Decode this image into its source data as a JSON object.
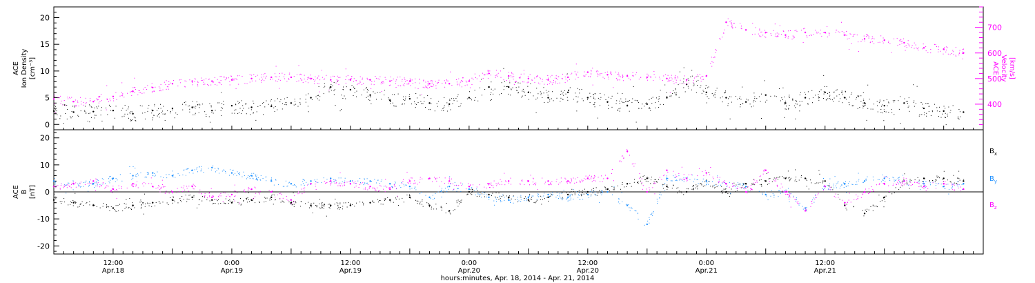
{
  "chart_data": [
    {
      "type": "scatter",
      "panel": "top",
      "title": "",
      "ylabel_left": [
        "ACE",
        "Ion Density",
        "[cm⁻³]"
      ],
      "ylabel_right": [
        "ACE",
        "Velocity",
        "[km/s]"
      ],
      "xlim": [
        0,
        94
      ],
      "ylim_left": [
        -1,
        22
      ],
      "ylim_right": [
        300,
        780
      ],
      "yticks_left": [
        0,
        5,
        10,
        15,
        20
      ],
      "yticks_right": [
        400,
        500,
        600,
        700
      ],
      "series": [
        {
          "name": "Ion Density",
          "axis": "left",
          "color": "#000000",
          "x": [
            0,
            2,
            4,
            6,
            8,
            10,
            12,
            14,
            16,
            18,
            20,
            22,
            24,
            26,
            28,
            30,
            32,
            34,
            36,
            38,
            40,
            42,
            44,
            46,
            48,
            50,
            52,
            54,
            56,
            58,
            60,
            62,
            64,
            66,
            68,
            70,
            72,
            74,
            76,
            78,
            80,
            82,
            84,
            86,
            88,
            90,
            92
          ],
          "y": [
            2.5,
            2.3,
            2.4,
            2.6,
            2.0,
            2.6,
            3.0,
            3.2,
            2.6,
            3.5,
            3.2,
            3.4,
            4.0,
            5.0,
            7.0,
            6.5,
            5.5,
            4.5,
            4.8,
            4.0,
            3.8,
            5.0,
            7.0,
            7.0,
            6.0,
            5.0,
            6.0,
            5.0,
            4.2,
            3.5,
            3.8,
            5.0,
            7.5,
            6.0,
            5.0,
            4.2,
            5.5,
            4.0,
            5.0,
            6.0,
            5.0,
            4.0,
            3.5,
            4.0,
            3.0,
            2.5,
            2.3
          ]
        },
        {
          "name": "Velocity",
          "axis": "right",
          "color": "#ff00ff",
          "x": [
            0,
            2,
            4,
            6,
            8,
            10,
            12,
            14,
            16,
            18,
            20,
            22,
            24,
            26,
            28,
            30,
            32,
            34,
            36,
            38,
            40,
            42,
            44,
            46,
            48,
            50,
            52,
            54,
            56,
            58,
            60,
            62,
            64,
            66,
            68,
            70,
            72,
            74,
            76,
            78,
            80,
            82,
            84,
            86,
            88,
            90,
            92
          ],
          "y": [
            420,
            410,
            410,
            430,
            450,
            465,
            480,
            490,
            490,
            495,
            500,
            505,
            505,
            500,
            495,
            495,
            495,
            490,
            490,
            480,
            480,
            490,
            520,
            510,
            500,
            495,
            505,
            525,
            515,
            510,
            505,
            500,
            495,
            510,
            720,
            690,
            680,
            670,
            680,
            680,
            670,
            655,
            650,
            640,
            620,
            615,
            600
          ]
        }
      ]
    },
    {
      "type": "scatter",
      "panel": "bottom",
      "title": "",
      "ylabel_left": [
        "ACE",
        "B",
        "[nT]"
      ],
      "xlabel": "hours:minutes, Apr. 18, 2014 - Apr. 21, 2014",
      "xlim": [
        0,
        94
      ],
      "ylim": [
        -23,
        23
      ],
      "yticks": [
        -20,
        -10,
        0,
        10,
        20
      ],
      "legend_position": "right",
      "x_tick_labels": [
        {
          "x": 6,
          "time": "12:00",
          "day": "Apr.18"
        },
        {
          "x": 18,
          "time": "0:00",
          "day": "Apr.19"
        },
        {
          "x": 30,
          "time": "12:00",
          "day": "Apr.19"
        },
        {
          "x": 42,
          "time": "0:00",
          "day": "Apr.20"
        },
        {
          "x": 54,
          "time": "12:00",
          "day": "Apr.20"
        },
        {
          "x": 66,
          "time": "0:00",
          "day": "Apr.21"
        },
        {
          "x": 78,
          "time": "12:00",
          "day": "Apr.21"
        }
      ],
      "series": [
        {
          "name": "B",
          "sub": "x",
          "color": "#000000",
          "x": [
            0,
            2,
            4,
            6,
            8,
            10,
            12,
            14,
            16,
            18,
            20,
            22,
            24,
            26,
            28,
            30,
            32,
            34,
            36,
            38,
            40,
            42,
            44,
            46,
            48,
            50,
            52,
            54,
            56,
            58,
            60,
            62,
            64,
            66,
            68,
            70,
            72,
            74,
            76,
            78,
            80,
            82,
            84,
            86,
            88,
            90,
            92
          ],
          "y": [
            -3,
            -4,
            -5,
            -6,
            -5,
            -4,
            -3,
            -2,
            -3,
            -4,
            -3,
            -2,
            -4,
            -5,
            -5,
            -5,
            -4,
            -3,
            -2,
            -5,
            -7,
            0,
            -1,
            -2,
            -3,
            -2,
            -1,
            0,
            1,
            3,
            5,
            2,
            0,
            4,
            0,
            3,
            4,
            5,
            5,
            4,
            -5,
            -8,
            -2,
            4,
            5,
            5,
            4
          ]
        },
        {
          "name": "B",
          "sub": "y",
          "color": "#1e90ff",
          "x": [
            0,
            2,
            4,
            6,
            8,
            10,
            12,
            14,
            16,
            18,
            20,
            22,
            24,
            26,
            28,
            30,
            32,
            34,
            36,
            38,
            40,
            42,
            44,
            46,
            48,
            50,
            52,
            54,
            56,
            58,
            60,
            62,
            64,
            66,
            68,
            70,
            72,
            74,
            76,
            78,
            80,
            82,
            84,
            86,
            88,
            90,
            92
          ],
          "y": [
            4,
            3,
            3,
            5,
            6,
            7,
            6,
            8,
            9,
            7,
            6,
            4,
            3,
            4,
            5,
            4,
            4,
            3,
            2,
            -2,
            2,
            1,
            -2,
            -3,
            -2,
            -1,
            -2,
            -1,
            0,
            -5,
            -12,
            5,
            5,
            4,
            3,
            2,
            -1,
            0,
            -6,
            2,
            3,
            4,
            5,
            4,
            3,
            2,
            3
          ]
        },
        {
          "name": "B",
          "sub": "z",
          "color": "#ff00ff",
          "x": [
            0,
            2,
            4,
            6,
            8,
            10,
            12,
            14,
            16,
            18,
            20,
            22,
            24,
            26,
            28,
            30,
            32,
            34,
            36,
            38,
            40,
            42,
            44,
            46,
            48,
            50,
            52,
            54,
            56,
            58,
            60,
            62,
            64,
            66,
            68,
            70,
            72,
            74,
            76,
            78,
            80,
            82,
            84,
            86,
            88,
            90,
            92
          ],
          "y": [
            2,
            3,
            4,
            1,
            3,
            2,
            0,
            2,
            -2,
            -1,
            1,
            0,
            -3,
            3,
            4,
            3,
            2,
            1,
            4,
            5,
            4,
            2,
            3,
            4,
            4,
            4,
            4,
            5,
            5,
            15,
            0,
            8,
            5,
            7,
            3,
            0,
            8,
            0,
            -7,
            2,
            -4,
            0,
            3,
            4,
            2,
            3,
            1
          ]
        }
      ]
    }
  ]
}
